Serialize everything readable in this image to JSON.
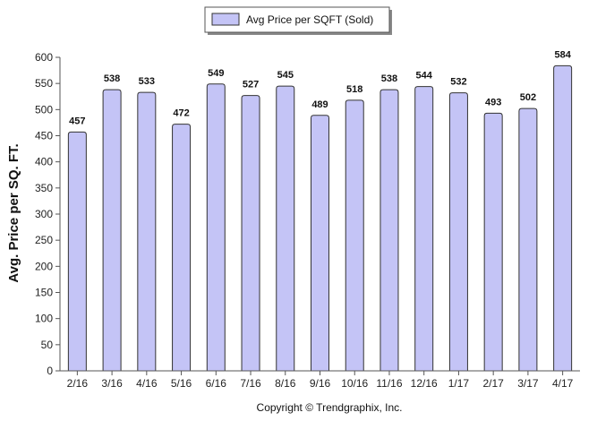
{
  "chart_data": {
    "type": "bar",
    "categories": [
      "2/16",
      "3/16",
      "4/16",
      "5/16",
      "6/16",
      "7/16",
      "8/16",
      "9/16",
      "10/16",
      "11/16",
      "12/16",
      "1/17",
      "2/17",
      "3/17",
      "4/17"
    ],
    "series": [
      {
        "name": "Avg Price per SQFT (Sold)",
        "values": [
          457,
          538,
          533,
          472,
          549,
          527,
          545,
          489,
          518,
          538,
          544,
          532,
          493,
          502,
          584
        ]
      }
    ],
    "data_labels": [
      "457",
      "538",
      "533",
      "472",
      "549",
      "527",
      "545",
      "489",
      "518",
      "538",
      "544",
      "532",
      "493",
      "502",
      "584"
    ],
    "title": "",
    "xlabel": "",
    "ylabel": "Avg. Price per SQ. FT.",
    "ylim": [
      0,
      600
    ],
    "yticks": [
      "0",
      "50",
      "100",
      "150",
      "200",
      "250",
      "300",
      "350",
      "400",
      "450",
      "500",
      "550",
      "600"
    ],
    "grid": false,
    "legend_position": "top-center",
    "bar_color": "#c4c4f6",
    "bar_edge_color": "#333333"
  },
  "footer": {
    "copyright": "Copyright © Trendgraphix, Inc."
  }
}
